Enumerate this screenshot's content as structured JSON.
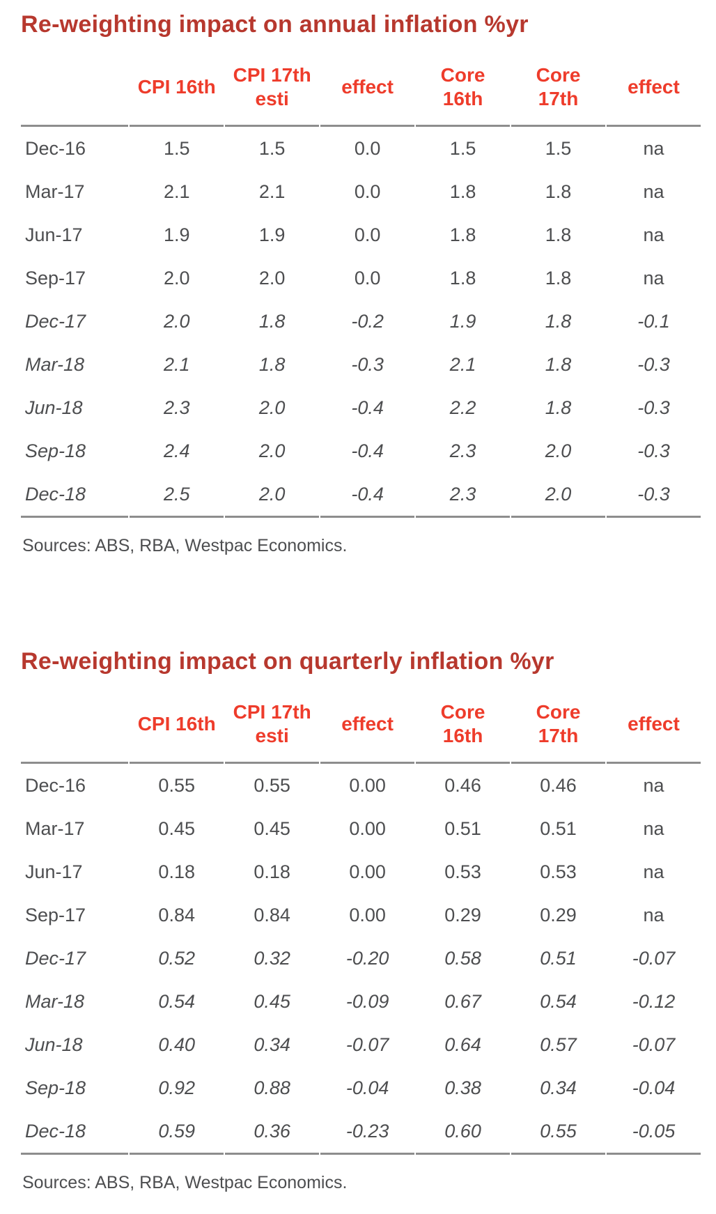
{
  "colors": {
    "title_red": "#b7382e",
    "header_red": "#ee3c2b",
    "text_gray": "#4d4e50",
    "rule_gray": "#8d8d8d"
  },
  "chart_data": [
    {
      "type": "table",
      "title": "Re-weighting impact on annual inflation %yr",
      "source": "Sources: ABS, RBA, Westpac Economics.",
      "columns": [
        {
          "lines": [
            ""
          ]
        },
        {
          "lines": [
            "CPI 16th"
          ]
        },
        {
          "lines": [
            "CPI 17th",
            "esti"
          ]
        },
        {
          "lines": [
            "effect"
          ]
        },
        {
          "lines": [
            "Core",
            "16th"
          ]
        },
        {
          "lines": [
            "Core",
            "17th"
          ]
        },
        {
          "lines": [
            "effect"
          ]
        }
      ],
      "rows": [
        {
          "label": "Dec-16",
          "values": [
            "1.5",
            "1.5",
            "0.0",
            "1.5",
            "1.5",
            "na"
          ],
          "forecast": false
        },
        {
          "label": "Mar-17",
          "values": [
            "2.1",
            "2.1",
            "0.0",
            "1.8",
            "1.8",
            "na"
          ],
          "forecast": false
        },
        {
          "label": "Jun-17",
          "values": [
            "1.9",
            "1.9",
            "0.0",
            "1.8",
            "1.8",
            "na"
          ],
          "forecast": false
        },
        {
          "label": "Sep-17",
          "values": [
            "2.0",
            "2.0",
            "0.0",
            "1.8",
            "1.8",
            "na"
          ],
          "forecast": false
        },
        {
          "label": "Dec-17",
          "values": [
            "2.0",
            "1.8",
            "-0.2",
            "1.9",
            "1.8",
            "-0.1"
          ],
          "forecast": true
        },
        {
          "label": "Mar-18",
          "values": [
            "2.1",
            "1.8",
            "-0.3",
            "2.1",
            "1.8",
            "-0.3"
          ],
          "forecast": true
        },
        {
          "label": "Jun-18",
          "values": [
            "2.3",
            "2.0",
            "-0.4",
            "2.2",
            "1.8",
            "-0.3"
          ],
          "forecast": true
        },
        {
          "label": "Sep-18",
          "values": [
            "2.4",
            "2.0",
            "-0.4",
            "2.3",
            "2.0",
            "-0.3"
          ],
          "forecast": true
        },
        {
          "label": "Dec-18",
          "values": [
            "2.5",
            "2.0",
            "-0.4",
            "2.3",
            "2.0",
            "-0.3"
          ],
          "forecast": true
        }
      ]
    },
    {
      "type": "table",
      "title": "Re-weighting impact on quarterly inflation %yr",
      "source": "Sources: ABS, RBA, Westpac Economics.",
      "columns": [
        {
          "lines": [
            ""
          ]
        },
        {
          "lines": [
            "CPI 16th"
          ]
        },
        {
          "lines": [
            "CPI 17th",
            "esti"
          ]
        },
        {
          "lines": [
            "effect"
          ]
        },
        {
          "lines": [
            "Core",
            "16th"
          ]
        },
        {
          "lines": [
            "Core",
            "17th"
          ]
        },
        {
          "lines": [
            "effect"
          ]
        }
      ],
      "rows": [
        {
          "label": "Dec-16",
          "values": [
            "0.55",
            "0.55",
            "0.00",
            "0.46",
            "0.46",
            "na"
          ],
          "forecast": false
        },
        {
          "label": "Mar-17",
          "values": [
            "0.45",
            "0.45",
            "0.00",
            "0.51",
            "0.51",
            "na"
          ],
          "forecast": false
        },
        {
          "label": "Jun-17",
          "values": [
            "0.18",
            "0.18",
            "0.00",
            "0.53",
            "0.53",
            "na"
          ],
          "forecast": false
        },
        {
          "label": "Sep-17",
          "values": [
            "0.84",
            "0.84",
            "0.00",
            "0.29",
            "0.29",
            "na"
          ],
          "forecast": false
        },
        {
          "label": "Dec-17",
          "values": [
            "0.52",
            "0.32",
            "-0.20",
            "0.58",
            "0.51",
            "-0.07"
          ],
          "forecast": true
        },
        {
          "label": "Mar-18",
          "values": [
            "0.54",
            "0.45",
            "-0.09",
            "0.67",
            "0.54",
            "-0.12"
          ],
          "forecast": true
        },
        {
          "label": "Jun-18",
          "values": [
            "0.40",
            "0.34",
            "-0.07",
            "0.64",
            "0.57",
            "-0.07"
          ],
          "forecast": true
        },
        {
          "label": "Sep-18",
          "values": [
            "0.92",
            "0.88",
            "-0.04",
            "0.38",
            "0.34",
            "-0.04"
          ],
          "forecast": true
        },
        {
          "label": "Dec-18",
          "values": [
            "0.59",
            "0.36",
            "-0.23",
            "0.60",
            "0.55",
            "-0.05"
          ],
          "forecast": true
        }
      ]
    }
  ]
}
